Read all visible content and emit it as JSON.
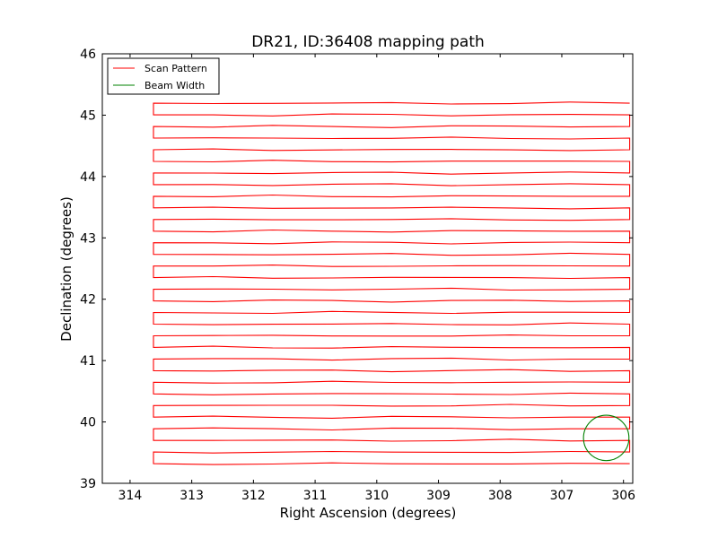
{
  "chart_data": {
    "type": "line",
    "title": "DR21, ID:36408 mapping path",
    "xlabel": "Right Ascension (degrees)",
    "ylabel": "Declination (degrees)",
    "xlim": [
      314.45,
      305.85
    ],
    "ylim": [
      39,
      46
    ],
    "x_ticks": [
      314,
      313,
      312,
      311,
      310,
      309,
      308,
      307,
      306
    ],
    "y_ticks": [
      39,
      40,
      41,
      42,
      43,
      44,
      45,
      46
    ],
    "grid": false,
    "legend": {
      "placement": "top-left",
      "entries": [
        {
          "label": "Scan Pattern",
          "color": "#ff0000"
        },
        {
          "label": "Beam Width",
          "color": "#008000"
        }
      ]
    },
    "series": [
      {
        "name": "Scan Pattern",
        "color": "#ff0000",
        "scan_rows": {
          "dec_start": 39.32,
          "dec_step": 0.1895,
          "count": 32,
          "ra_east": 313.62,
          "ra_west": 305.9
        }
      },
      {
        "name": "Beam Width",
        "color": "#008000",
        "circle": {
          "center_ra": 306.28,
          "center_dec": 39.74,
          "radius_dec": 0.37
        }
      }
    ]
  }
}
